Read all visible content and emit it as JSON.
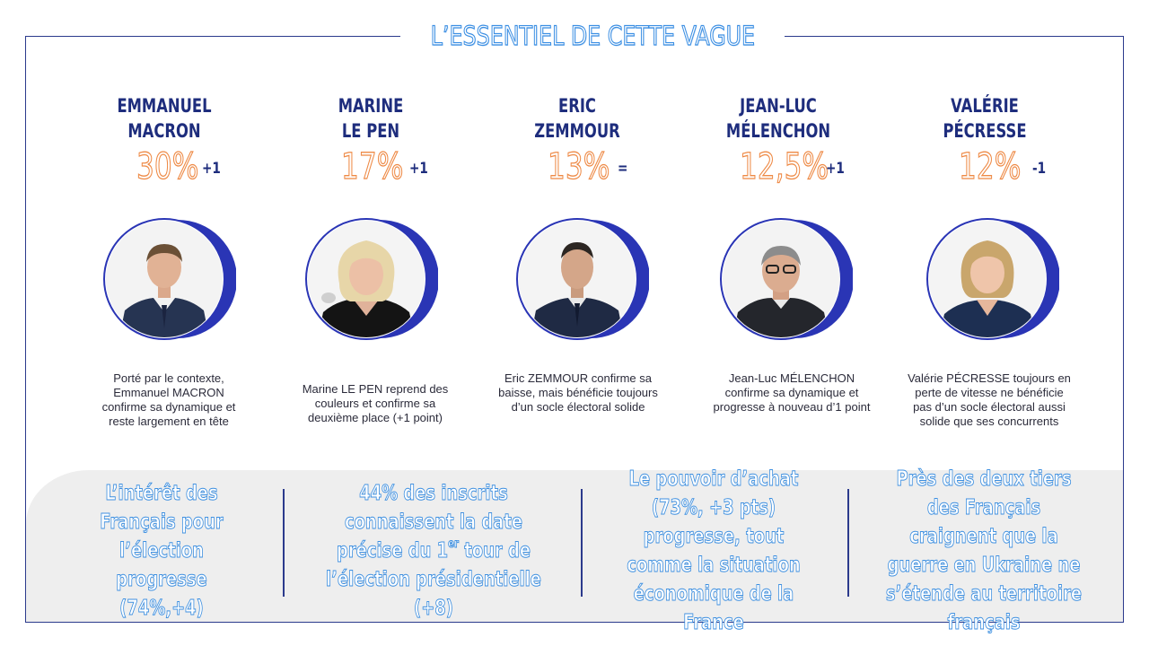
{
  "title": "L’ESSENTIEL DE CETTE VAGUE",
  "candidates": [
    {
      "name_line1": "EMMANUEL",
      "name_line2": "MACRON",
      "score": "30%",
      "change": "+1",
      "description": "Porté par le contexte, Emmanuel MACRON confirme sa dynamique et reste largement en tête"
    },
    {
      "name_line1": "MARINE",
      "name_line2": "LE PEN",
      "score": "17%",
      "change": "+1",
      "description": "Marine LE PEN reprend des couleurs et confirme sa deuxième place (+1 point)"
    },
    {
      "name_line1": "ERIC",
      "name_line2": "ZEMMOUR",
      "score": "13%",
      "change": "=",
      "description": "Eric ZEMMOUR  confirme sa baisse, mais bénéficie toujours d’un socle électoral solide"
    },
    {
      "name_line1": "JEAN-LUC",
      "name_line2": "MÉLENCHON",
      "score": "12,5%",
      "change": "+1",
      "description": "Jean-Luc MÉLENCHON confirme sa dynamique et progresse  à nouveau d’1 point"
    },
    {
      "name_line1": "VALÉRIE",
      "name_line2": "PÉCRESSE",
      "score": "12%",
      "change": "-1",
      "description": "Valérie PÉCRESSE  toujours en perte de vitesse ne bénéficie pas d’un socle électoral aussi solide que ses concurrents"
    }
  ],
  "insights": [
    {
      "text": "L’intérêt des Français pour l’élection progresse (74%,+4)"
    },
    {
      "text_before": "44% des inscrits connaissent la date précise du 1",
      "sup": "er",
      "text_after": " tour de l’élection présidentielle (+8)"
    },
    {
      "text": "Le pouvoir d’achat (73%, +3 pts) progresse, tout comme la situation économique de la France"
    },
    {
      "text": "Près des deux tiers des Français craignent que la guerre en Ukraine ne s’étende au territoire français"
    }
  ],
  "colors": {
    "navy": "#1e2d7d",
    "score_orange": "#ee8a46",
    "title_blue": "#3c8fe3",
    "ring_blue": "#2a35b5",
    "band_grey": "#eeeeee"
  },
  "icons": [
    "portrait-macron",
    "portrait-le-pen",
    "portrait-zemmour",
    "portrait-melenchon",
    "portrait-pecresse"
  ]
}
